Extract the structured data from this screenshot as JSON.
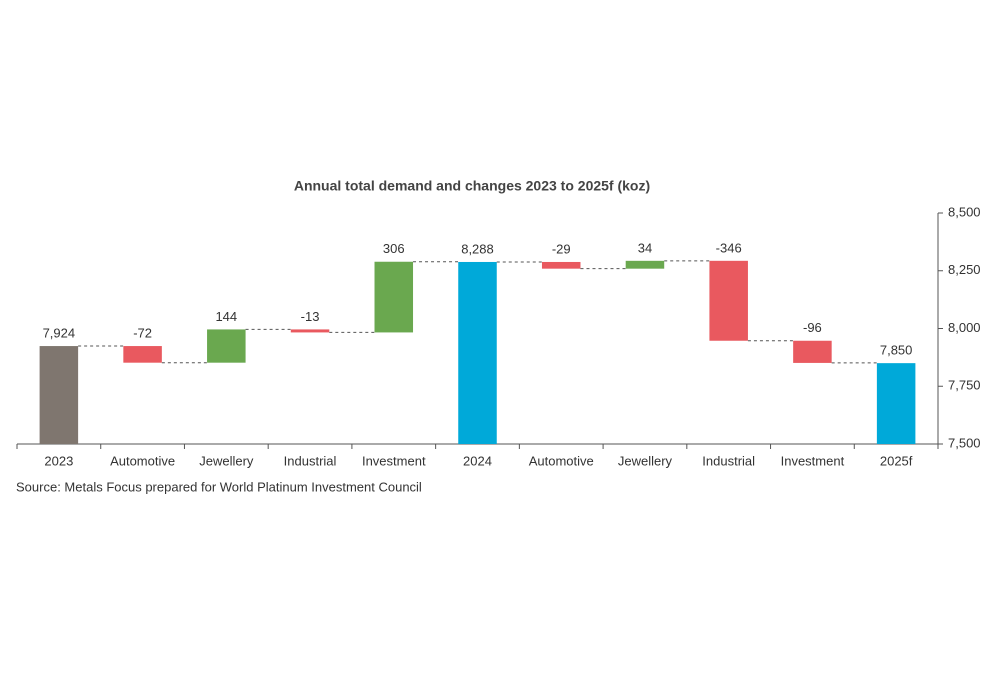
{
  "chart_data": {
    "type": "waterfall",
    "title": "Annual total demand and changes 2023 to 2025f (koz)",
    "source": "Source: Metals Focus prepared for World Platinum Investment Council",
    "categories": [
      "2023",
      "Automotive",
      "Jewellery",
      "Industrial",
      "Investment",
      "2024",
      "Automotive",
      "Jewellery",
      "Industrial",
      "Investment",
      "2025f"
    ],
    "measure": [
      "total",
      "relative",
      "relative",
      "relative",
      "relative",
      "total",
      "relative",
      "relative",
      "relative",
      "relative",
      "total"
    ],
    "values": [
      7924,
      -72,
      144,
      -13,
      306,
      8288,
      -29,
      34,
      -346,
      -96,
      7850
    ],
    "value_labels": [
      "7,924",
      "-72",
      "144",
      "-13",
      "306",
      "8,288",
      "-29",
      "34",
      "-346",
      "-96",
      "7,850"
    ],
    "colors": [
      "#7f766f",
      "#e9595f",
      "#6aa84f",
      "#e9595f",
      "#6aa84f",
      "#00a9d9",
      "#e9595f",
      "#6aa84f",
      "#e9595f",
      "#e9595f",
      "#00a9d9"
    ],
    "ylim": [
      7500,
      8500
    ],
    "yticks": [
      {
        "value": 7500,
        "label": "7,500"
      },
      {
        "value": 7750,
        "label": "7,750"
      },
      {
        "value": 8000,
        "label": "8,000"
      },
      {
        "value": 8250,
        "label": "8,250"
      },
      {
        "value": 8500,
        "label": "8,500"
      }
    ],
    "y_axis_side": "right",
    "connectors": true
  }
}
